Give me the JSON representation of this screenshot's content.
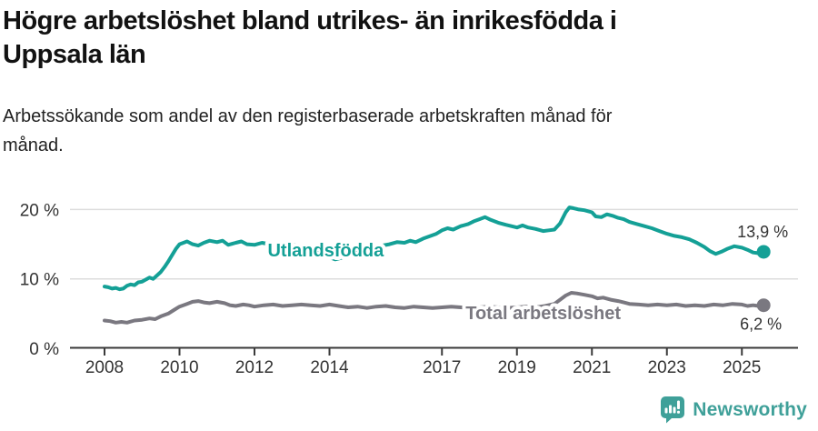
{
  "header": {
    "title_lines": [
      "Högre arbetslöshet bland utrikes- än inrikesfödda i",
      "Uppsala län"
    ],
    "subtitle_lines": [
      "Arbetssökande som andel av den registerbaserade arbetskraften månad för",
      "månad."
    ]
  },
  "footer": {
    "brand_name": "Newsworthy",
    "logo_icon": "speech-bubble-bar-chart-icon"
  },
  "colors": {
    "accent": "#14A096",
    "secondary": "#7A7880",
    "brand": "#3FA099",
    "text": "#333333",
    "title": "#121212",
    "grid": "#DDDDDD",
    "axis": "#3A3A3A"
  },
  "chart_data": {
    "type": "line",
    "title": "Högre arbetslöshet bland utrikes- än inrikesfödda i Uppsala län",
    "subtitle": "Arbetssökande som andel av den registerbaserade arbetskraften månad för månad.",
    "grid": "horizontal",
    "legend_position": "inline-on-line",
    "x_axis": {
      "unit": "year",
      "range": [
        2007.08,
        2026.5
      ],
      "tick_values": [
        2008,
        2010,
        2012,
        2014,
        2017,
        2019,
        2021,
        2023,
        2025
      ],
      "tick_labels": [
        "2008",
        "2010",
        "2012",
        "2014",
        "2017",
        "2019",
        "2021",
        "2023",
        "2025"
      ]
    },
    "y_axis": {
      "unit": "%",
      "range": [
        0,
        22
      ],
      "ticks": [
        {
          "value": 0,
          "label": "0 %"
        },
        {
          "value": 10,
          "label": "10 %"
        },
        {
          "value": 20,
          "label": "20 %"
        }
      ]
    },
    "series": [
      {
        "name": "Utlandsfödda",
        "color": "#14A096",
        "line_label": {
          "text": "Utlandsfödda",
          "year": 2013.9,
          "value_pct": 14.0
        },
        "end": {
          "label": "13,9 %",
          "value": 13.9,
          "offset": [
            27,
            -16
          ]
        },
        "points": [
          [
            2008.0,
            8.9
          ],
          [
            2008.1,
            8.8
          ],
          [
            2008.2,
            8.6
          ],
          [
            2008.3,
            8.7
          ],
          [
            2008.4,
            8.5
          ],
          [
            2008.5,
            8.6
          ],
          [
            2008.6,
            9.0
          ],
          [
            2008.7,
            9.2
          ],
          [
            2008.8,
            9.1
          ],
          [
            2008.9,
            9.5
          ],
          [
            2009.0,
            9.6
          ],
          [
            2009.1,
            9.9
          ],
          [
            2009.2,
            10.2
          ],
          [
            2009.3,
            10.0
          ],
          [
            2009.4,
            10.5
          ],
          [
            2009.5,
            11.0
          ],
          [
            2009.6,
            11.7
          ],
          [
            2009.7,
            12.5
          ],
          [
            2009.8,
            13.4
          ],
          [
            2009.9,
            14.3
          ],
          [
            2010.0,
            15.0
          ],
          [
            2010.2,
            15.4
          ],
          [
            2010.35,
            15.0
          ],
          [
            2010.5,
            14.8
          ],
          [
            2010.65,
            15.2
          ],
          [
            2010.8,
            15.5
          ],
          [
            2011.0,
            15.3
          ],
          [
            2011.15,
            15.5
          ],
          [
            2011.3,
            14.9
          ],
          [
            2011.5,
            15.2
          ],
          [
            2011.65,
            15.4
          ],
          [
            2011.8,
            15.0
          ],
          [
            2012.0,
            14.9
          ],
          [
            2012.2,
            15.2
          ],
          [
            2012.4,
            15.0
          ],
          [
            2012.6,
            15.1
          ],
          [
            2012.8,
            14.9
          ],
          [
            2013.0,
            15.0
          ],
          [
            2013.2,
            14.8
          ],
          [
            2013.4,
            14.6
          ],
          [
            2013.6,
            14.2
          ],
          [
            2013.8,
            13.6
          ],
          [
            2014.0,
            13.1
          ],
          [
            2014.15,
            12.8
          ],
          [
            2014.3,
            13.0
          ],
          [
            2014.5,
            13.4
          ],
          [
            2014.7,
            13.8
          ],
          [
            2014.85,
            14.0
          ],
          [
            2015.0,
            14.3
          ],
          [
            2015.2,
            14.5
          ],
          [
            2015.4,
            14.8
          ],
          [
            2015.6,
            15.0
          ],
          [
            2015.8,
            15.3
          ],
          [
            2016.0,
            15.2
          ],
          [
            2016.15,
            15.5
          ],
          [
            2016.3,
            15.3
          ],
          [
            2016.5,
            15.8
          ],
          [
            2016.7,
            16.2
          ],
          [
            2016.85,
            16.5
          ],
          [
            2017.0,
            17.0
          ],
          [
            2017.15,
            17.3
          ],
          [
            2017.3,
            17.1
          ],
          [
            2017.5,
            17.6
          ],
          [
            2017.7,
            17.9
          ],
          [
            2017.85,
            18.3
          ],
          [
            2018.0,
            18.6
          ],
          [
            2018.15,
            18.9
          ],
          [
            2018.3,
            18.5
          ],
          [
            2018.5,
            18.1
          ],
          [
            2018.7,
            17.8
          ],
          [
            2018.85,
            17.6
          ],
          [
            2019.0,
            17.4
          ],
          [
            2019.15,
            17.7
          ],
          [
            2019.3,
            17.4
          ],
          [
            2019.5,
            17.2
          ],
          [
            2019.7,
            16.9
          ],
          [
            2019.85,
            17.0
          ],
          [
            2020.0,
            17.1
          ],
          [
            2020.15,
            18.0
          ],
          [
            2020.3,
            19.6
          ],
          [
            2020.4,
            20.3
          ],
          [
            2020.5,
            20.2
          ],
          [
            2020.65,
            20.0
          ],
          [
            2020.8,
            19.9
          ],
          [
            2021.0,
            19.6
          ],
          [
            2021.1,
            19.0
          ],
          [
            2021.25,
            18.9
          ],
          [
            2021.4,
            19.3
          ],
          [
            2021.55,
            19.1
          ],
          [
            2021.7,
            18.8
          ],
          [
            2021.85,
            18.6
          ],
          [
            2022.0,
            18.2
          ],
          [
            2022.2,
            17.9
          ],
          [
            2022.4,
            17.6
          ],
          [
            2022.6,
            17.3
          ],
          [
            2022.8,
            16.9
          ],
          [
            2023.0,
            16.5
          ],
          [
            2023.2,
            16.2
          ],
          [
            2023.4,
            16.0
          ],
          [
            2023.6,
            15.7
          ],
          [
            2023.8,
            15.2
          ],
          [
            2024.0,
            14.6
          ],
          [
            2024.15,
            14.0
          ],
          [
            2024.3,
            13.6
          ],
          [
            2024.45,
            13.9
          ],
          [
            2024.6,
            14.3
          ],
          [
            2024.8,
            14.7
          ],
          [
            2025.0,
            14.5
          ],
          [
            2025.15,
            14.2
          ],
          [
            2025.3,
            13.8
          ],
          [
            2025.45,
            13.7
          ],
          [
            2025.58,
            13.9
          ]
        ]
      },
      {
        "name": "Total arbetslöshet",
        "color": "#7A7880",
        "line_label": {
          "text": "Total arbetslöshet",
          "year": 2019.7,
          "value_pct": 5.0
        },
        "end": {
          "label": "6,2 %",
          "value": 6.2,
          "offset": [
            20,
            27
          ]
        },
        "points": [
          [
            2008.0,
            4.0
          ],
          [
            2008.15,
            3.9
          ],
          [
            2008.3,
            3.7
          ],
          [
            2008.45,
            3.8
          ],
          [
            2008.6,
            3.7
          ],
          [
            2008.8,
            4.0
          ],
          [
            2009.0,
            4.1
          ],
          [
            2009.2,
            4.3
          ],
          [
            2009.35,
            4.2
          ],
          [
            2009.5,
            4.6
          ],
          [
            2009.7,
            5.0
          ],
          [
            2009.85,
            5.5
          ],
          [
            2010.0,
            6.0
          ],
          [
            2010.2,
            6.4
          ],
          [
            2010.35,
            6.7
          ],
          [
            2010.5,
            6.8
          ],
          [
            2010.65,
            6.6
          ],
          [
            2010.8,
            6.5
          ],
          [
            2011.0,
            6.7
          ],
          [
            2011.2,
            6.5
          ],
          [
            2011.35,
            6.2
          ],
          [
            2011.5,
            6.1
          ],
          [
            2011.7,
            6.3
          ],
          [
            2011.85,
            6.2
          ],
          [
            2012.0,
            6.0
          ],
          [
            2012.25,
            6.2
          ],
          [
            2012.5,
            6.3
          ],
          [
            2012.75,
            6.1
          ],
          [
            2013.0,
            6.2
          ],
          [
            2013.25,
            6.3
          ],
          [
            2013.5,
            6.2
          ],
          [
            2013.75,
            6.1
          ],
          [
            2014.0,
            6.3
          ],
          [
            2014.25,
            6.1
          ],
          [
            2014.5,
            5.9
          ],
          [
            2014.75,
            6.0
          ],
          [
            2015.0,
            5.8
          ],
          [
            2015.25,
            6.0
          ],
          [
            2015.5,
            6.1
          ],
          [
            2015.75,
            5.9
          ],
          [
            2016.0,
            5.8
          ],
          [
            2016.25,
            6.0
          ],
          [
            2016.5,
            5.9
          ],
          [
            2016.75,
            5.8
          ],
          [
            2017.0,
            5.9
          ],
          [
            2017.25,
            6.0
          ],
          [
            2017.5,
            5.9
          ],
          [
            2017.75,
            5.8
          ],
          [
            2018.0,
            5.9
          ],
          [
            2018.25,
            6.0
          ],
          [
            2018.5,
            5.9
          ],
          [
            2018.75,
            5.8
          ],
          [
            2019.0,
            5.9
          ],
          [
            2019.25,
            6.0
          ],
          [
            2019.5,
            5.9
          ],
          [
            2019.75,
            6.1
          ],
          [
            2020.0,
            6.4
          ],
          [
            2020.15,
            7.0
          ],
          [
            2020.3,
            7.6
          ],
          [
            2020.45,
            8.0
          ],
          [
            2020.6,
            7.9
          ],
          [
            2020.8,
            7.7
          ],
          [
            2021.0,
            7.5
          ],
          [
            2021.15,
            7.2
          ],
          [
            2021.3,
            7.3
          ],
          [
            2021.5,
            7.0
          ],
          [
            2021.7,
            6.8
          ],
          [
            2021.85,
            6.6
          ],
          [
            2022.0,
            6.4
          ],
          [
            2022.25,
            6.3
          ],
          [
            2022.5,
            6.2
          ],
          [
            2022.75,
            6.3
          ],
          [
            2023.0,
            6.2
          ],
          [
            2023.25,
            6.3
          ],
          [
            2023.5,
            6.1
          ],
          [
            2023.75,
            6.2
          ],
          [
            2024.0,
            6.1
          ],
          [
            2024.25,
            6.3
          ],
          [
            2024.5,
            6.2
          ],
          [
            2024.75,
            6.4
          ],
          [
            2025.0,
            6.3
          ],
          [
            2025.15,
            6.1
          ],
          [
            2025.3,
            6.2
          ],
          [
            2025.45,
            6.1
          ],
          [
            2025.58,
            6.2
          ]
        ]
      }
    ]
  }
}
